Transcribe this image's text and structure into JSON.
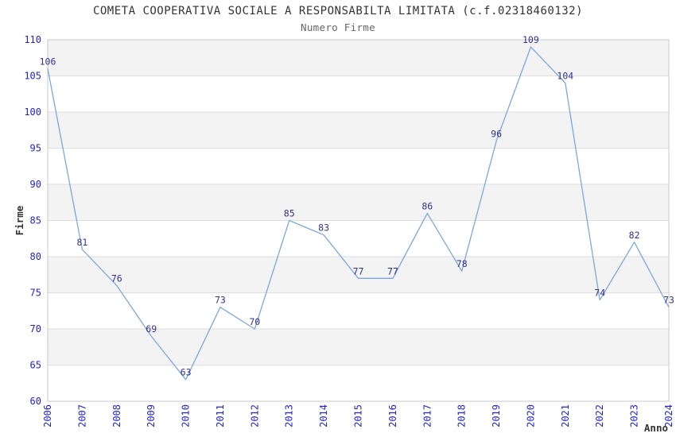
{
  "chart_data": {
    "type": "line",
    "title": "COMETA COOPERATIVA SOCIALE A RESPONSABILTA LIMITATA (c.f.02318460132)",
    "subtitle": "Numero Firme",
    "xlabel": "Anno",
    "ylabel": "Firme",
    "categories": [
      "2006",
      "2007",
      "2008",
      "2009",
      "2010",
      "2011",
      "2012",
      "2013",
      "2014",
      "2015",
      "2016",
      "2017",
      "2018",
      "2019",
      "2020",
      "2021",
      "2022",
      "2023",
      "2024"
    ],
    "values": [
      106,
      81,
      76,
      69,
      63,
      73,
      70,
      85,
      83,
      77,
      77,
      86,
      78,
      96,
      109,
      104,
      74,
      82,
      73
    ],
    "ylim": [
      60,
      110
    ],
    "ytick_step": 5,
    "legend": "none",
    "grid": true,
    "colors": {
      "line": "#7aa8e0",
      "tick_label": "#2323cd",
      "value_label": "#32328c",
      "band": "#f3f3f3",
      "gridline": "#dedede",
      "plot_border": "#c8c8c8",
      "title": "#333333",
      "subtitle": "#666666",
      "axis_title": "#333333",
      "background": "#ffffff"
    }
  }
}
